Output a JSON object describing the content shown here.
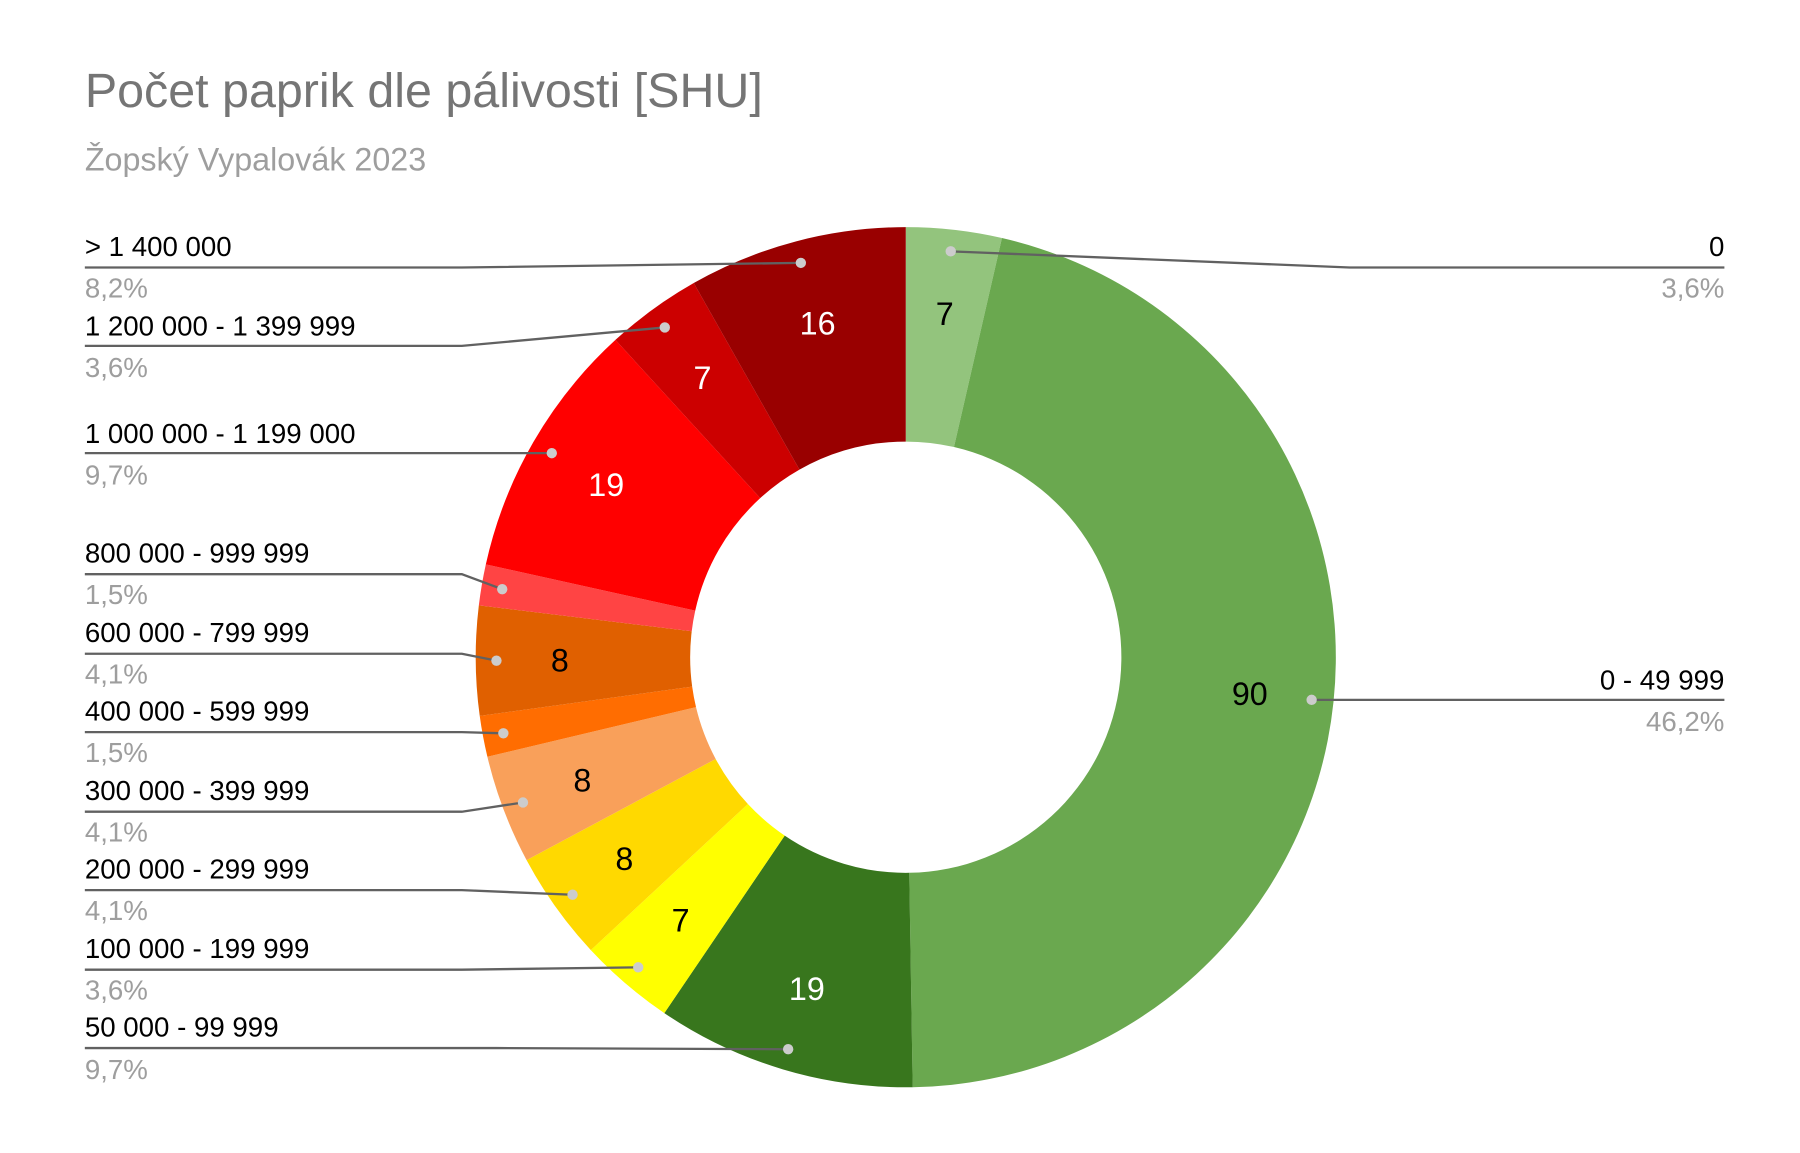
{
  "chart_data": {
    "type": "pie",
    "donut": true,
    "title": "Počet paprik dle pálivosti [SHU]",
    "subtitle": "Žopský Vypalovák 2023",
    "slices": [
      {
        "label": "0",
        "value": 7,
        "percent": "3,6%",
        "color": "#93c47d",
        "text_color": "#000000"
      },
      {
        "label": "0 - 49 999",
        "value": 90,
        "percent": "46,2%",
        "color": "#6aa84f",
        "text_color": "#000000"
      },
      {
        "label": "50 000 - 99 999",
        "value": 19,
        "percent": "9,7%",
        "color": "#38761d",
        "text_color": "#ffffff"
      },
      {
        "label": "100 000 - 199 999",
        "value": 7,
        "percent": "3,6%",
        "color": "#ffff00",
        "text_color": "#000000"
      },
      {
        "label": "200 000 - 299 999",
        "value": 8,
        "percent": "4,1%",
        "color": "#ffd900",
        "text_color": "#000000"
      },
      {
        "label": "300 000 - 399 999",
        "value": 8,
        "percent": "4,1%",
        "color": "#f9a05a",
        "text_color": "#000000"
      },
      {
        "label": "400 000 - 599 999",
        "value": 3,
        "percent": "1,5%",
        "color": "#ff6d01",
        "text_color": "#000000"
      },
      {
        "label": "600 000 - 799 999",
        "value": 8,
        "percent": "4,1%",
        "color": "#e06000",
        "text_color": "#000000"
      },
      {
        "label": "800 000 - 999 999",
        "value": 3,
        "percent": "1,5%",
        "color": "#ff4444",
        "text_color": "#000000"
      },
      {
        "label": "1 000 000 - 1 199 000",
        "value": 19,
        "percent": "9,7%",
        "color": "#ff0000",
        "text_color": "#ffffff"
      },
      {
        "label": "1 200 000 - 1 399 999",
        "value": 7,
        "percent": "3,6%",
        "color": "#cc0000",
        "text_color": "#ffffff"
      },
      {
        "label": "> 1 400 000",
        "value": 16,
        "percent": "8,2%",
        "color": "#990000",
        "text_color": "#ffffff"
      }
    ],
    "legend": "labeled-callouts"
  }
}
